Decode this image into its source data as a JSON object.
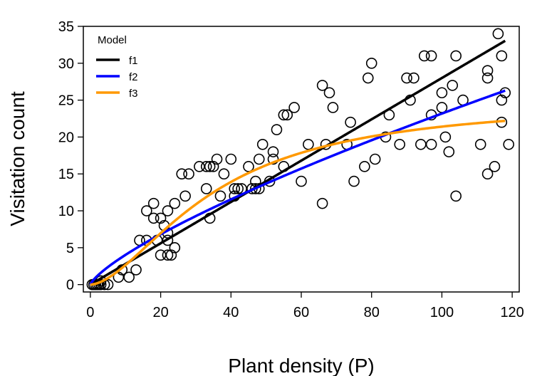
{
  "chart_data": {
    "type": "scatter",
    "title": "",
    "xlabel": "Plant density (P)",
    "ylabel": "Visitation count",
    "xlim": [
      -2,
      122
    ],
    "ylim": [
      -1,
      35
    ],
    "xticks": [
      0,
      20,
      40,
      60,
      80,
      100,
      120
    ],
    "yticks": [
      0,
      5,
      10,
      15,
      20,
      25,
      30,
      35
    ],
    "grid": false,
    "legend": {
      "title": "Model",
      "placement": "top-left",
      "entries": [
        {
          "label": "f1",
          "color": "#000000"
        },
        {
          "label": "f2",
          "color": "#0000ff"
        },
        {
          "label": "f3",
          "color": "#ff9900"
        }
      ]
    },
    "points": [
      [
        0.5,
        0
      ],
      [
        1,
        0
      ],
      [
        1.5,
        0
      ],
      [
        2,
        0
      ],
      [
        2.5,
        0
      ],
      [
        3,
        0
      ],
      [
        4,
        0
      ],
      [
        5,
        0
      ],
      [
        3,
        0.5
      ],
      [
        8,
        1
      ],
      [
        9,
        2
      ],
      [
        11,
        1
      ],
      [
        13,
        2
      ],
      [
        14,
        6
      ],
      [
        16,
        6
      ],
      [
        16,
        10
      ],
      [
        18,
        9
      ],
      [
        18,
        11
      ],
      [
        19,
        6
      ],
      [
        20,
        4
      ],
      [
        20,
        9
      ],
      [
        21,
        8
      ],
      [
        22,
        4
      ],
      [
        22,
        6
      ],
      [
        22,
        7
      ],
      [
        22,
        10
      ],
      [
        23,
        4
      ],
      [
        24,
        5
      ],
      [
        24,
        11
      ],
      [
        26,
        15
      ],
      [
        27,
        12
      ],
      [
        28,
        15
      ],
      [
        31,
        16
      ],
      [
        33,
        13
      ],
      [
        33,
        16
      ],
      [
        34,
        9
      ],
      [
        34,
        16
      ],
      [
        35,
        16
      ],
      [
        36,
        17
      ],
      [
        37,
        12
      ],
      [
        38,
        15
      ],
      [
        40,
        17
      ],
      [
        41,
        13
      ],
      [
        41,
        12
      ],
      [
        42,
        13
      ],
      [
        43,
        13
      ],
      [
        45,
        16
      ],
      [
        46,
        13
      ],
      [
        47,
        13
      ],
      [
        47,
        14
      ],
      [
        48,
        13
      ],
      [
        48,
        17
      ],
      [
        49,
        19
      ],
      [
        51,
        14
      ],
      [
        52,
        17
      ],
      [
        52,
        18
      ],
      [
        53,
        21
      ],
      [
        55,
        16
      ],
      [
        55,
        23
      ],
      [
        56,
        23
      ],
      [
        58,
        24
      ],
      [
        60,
        14
      ],
      [
        62,
        19
      ],
      [
        66,
        27
      ],
      [
        66,
        11
      ],
      [
        67,
        19
      ],
      [
        68,
        26
      ],
      [
        69,
        24
      ],
      [
        73,
        19
      ],
      [
        74,
        22
      ],
      [
        75,
        14
      ],
      [
        78,
        16
      ],
      [
        79,
        28
      ],
      [
        80,
        30
      ],
      [
        81,
        17
      ],
      [
        84,
        20
      ],
      [
        85,
        23
      ],
      [
        88,
        19
      ],
      [
        90,
        28
      ],
      [
        91,
        25
      ],
      [
        92,
        28
      ],
      [
        94,
        19
      ],
      [
        95,
        31
      ],
      [
        97,
        19
      ],
      [
        97,
        23
      ],
      [
        97,
        31
      ],
      [
        100,
        26
      ],
      [
        100,
        24
      ],
      [
        101,
        20
      ],
      [
        102,
        18
      ],
      [
        103,
        27
      ],
      [
        104,
        31
      ],
      [
        104,
        12
      ],
      [
        106,
        25
      ],
      [
        111,
        19
      ],
      [
        113,
        15
      ],
      [
        113,
        28
      ],
      [
        113,
        29
      ],
      [
        115,
        16
      ],
      [
        116,
        34
      ],
      [
        117,
        22
      ],
      [
        117,
        25
      ],
      [
        117,
        31
      ],
      [
        118,
        26
      ],
      [
        119,
        19
      ]
    ],
    "series": [
      {
        "name": "f1",
        "color": "#000000",
        "model": "linear",
        "params": {
          "a": 0.28
        }
      },
      {
        "name": "f2",
        "color": "#0000ff",
        "model": "power",
        "params": {
          "a": 0.7,
          "b": 0.76
        }
      },
      {
        "name": "f3",
        "color": "#ff9900",
        "model": "sigmoid",
        "params": {
          "max": 25,
          "h": 35,
          "n": 1.7
        }
      }
    ]
  }
}
